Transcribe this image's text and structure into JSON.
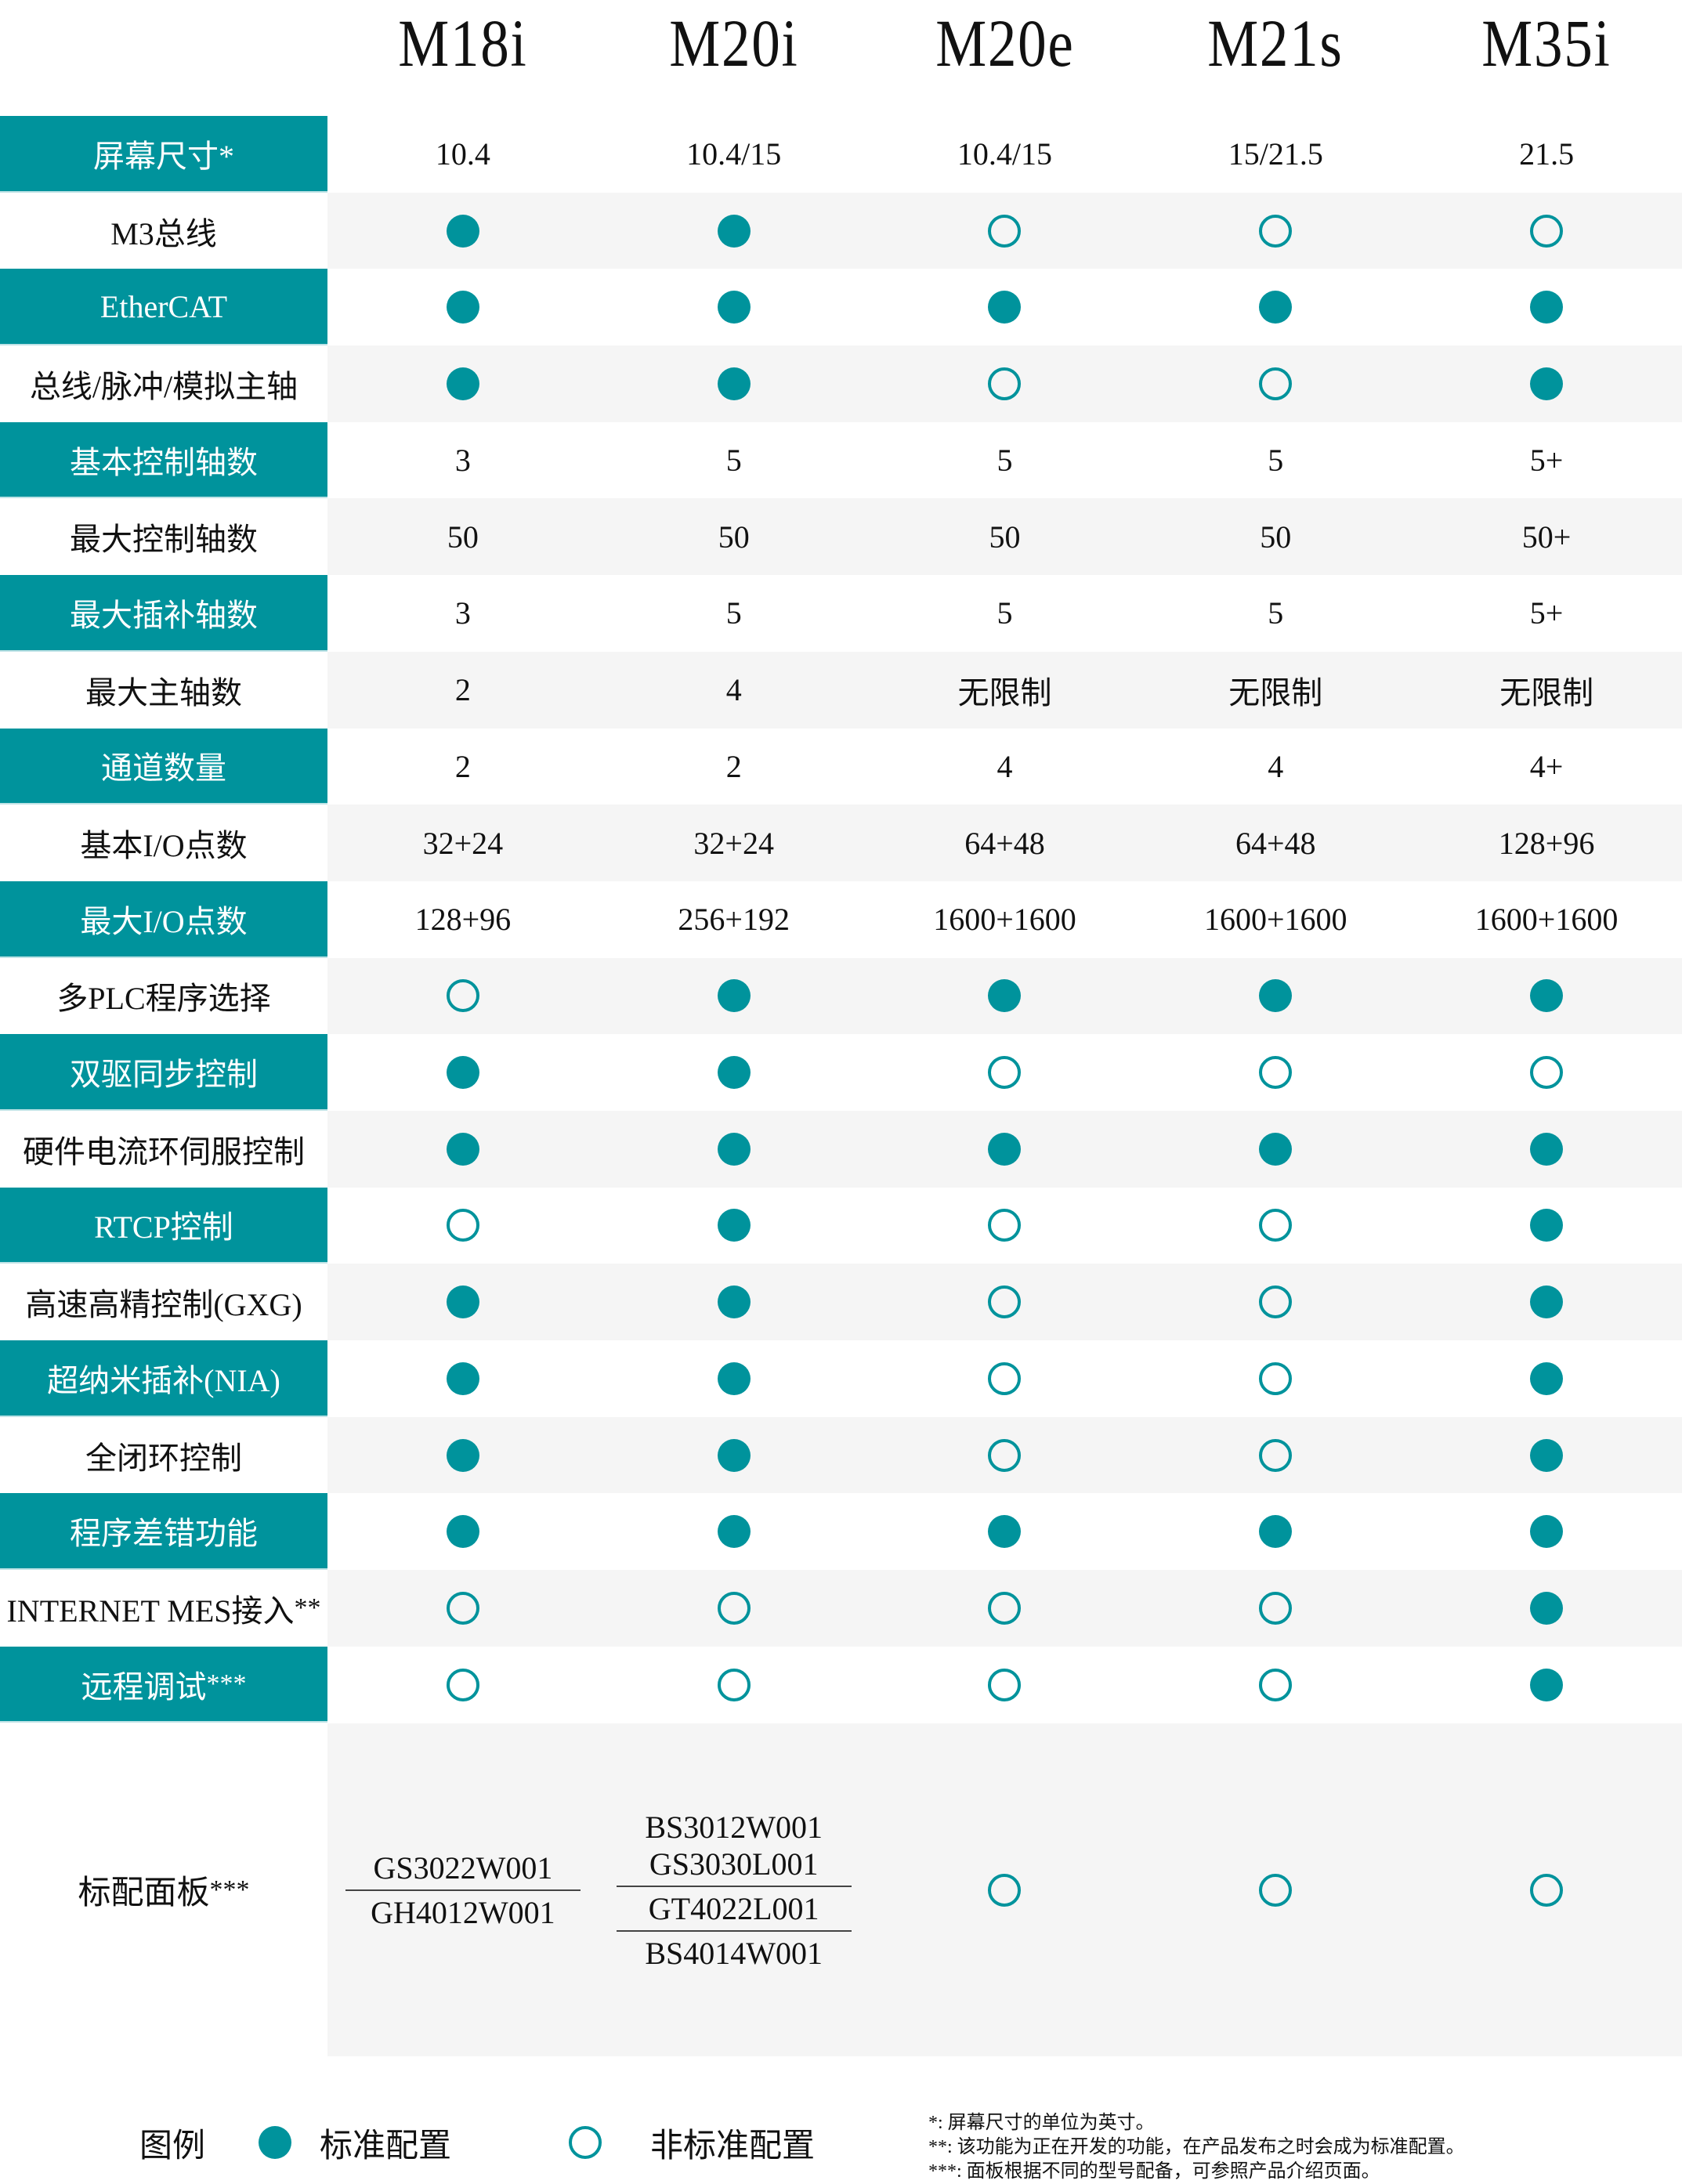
{
  "accent_color": "#00939c",
  "models": [
    "M18i",
    "M20i",
    "M20e",
    "M21s",
    "M35i"
  ],
  "rows": [
    {
      "label": "屏幕尺寸*",
      "teal": true,
      "values": [
        "10.4",
        "10.4/15",
        "10.4/15",
        "15/21.5",
        "21.5"
      ]
    },
    {
      "label": "M3总线",
      "teal": false,
      "values": [
        "filled",
        "filled",
        "open",
        "open",
        "open"
      ]
    },
    {
      "label": "EtherCAT",
      "teal": true,
      "values": [
        "filled",
        "filled",
        "filled",
        "filled",
        "filled"
      ]
    },
    {
      "label": "总线/脉冲/模拟主轴",
      "teal": false,
      "values": [
        "filled",
        "filled",
        "open",
        "open",
        "filled"
      ]
    },
    {
      "label": "基本控制轴数",
      "teal": true,
      "values": [
        "3",
        "5",
        "5",
        "5",
        "5+"
      ]
    },
    {
      "label": "最大控制轴数",
      "teal": false,
      "values": [
        "50",
        "50",
        "50",
        "50",
        "50+"
      ]
    },
    {
      "label": "最大插补轴数",
      "teal": true,
      "values": [
        "3",
        "5",
        "5",
        "5",
        "5+"
      ]
    },
    {
      "label": "最大主轴数",
      "teal": false,
      "values": [
        "2",
        "4",
        "无限制",
        "无限制",
        "无限制"
      ]
    },
    {
      "label": "通道数量",
      "teal": true,
      "values": [
        "2",
        "2",
        "4",
        "4",
        "4+"
      ]
    },
    {
      "label": "基本I/O点数",
      "teal": false,
      "values": [
        "32+24",
        "32+24",
        "64+48",
        "64+48",
        "128+96"
      ]
    },
    {
      "label": "最大I/O点数",
      "teal": true,
      "values": [
        "128+96",
        "256+192",
        "1600+1600",
        "1600+1600",
        "1600+1600"
      ]
    },
    {
      "label": "多PLC程序选择",
      "teal": false,
      "values": [
        "open",
        "filled",
        "filled",
        "filled",
        "filled"
      ]
    },
    {
      "label": "双驱同步控制",
      "teal": true,
      "values": [
        "filled",
        "filled",
        "open",
        "open",
        "open"
      ]
    },
    {
      "label": "硬件电流环伺服控制",
      "teal": false,
      "values": [
        "filled",
        "filled",
        "filled",
        "filled",
        "filled"
      ]
    },
    {
      "label": "RTCP控制",
      "teal": true,
      "values": [
        "open",
        "filled",
        "open",
        "open",
        "filled"
      ]
    },
    {
      "label": "高速高精控制(GXG)",
      "teal": false,
      "values": [
        "filled",
        "filled",
        "open",
        "open",
        "filled"
      ]
    },
    {
      "label": "超纳米插补(NIA)",
      "teal": true,
      "values": [
        "filled",
        "filled",
        "open",
        "open",
        "filled"
      ]
    },
    {
      "label": "全闭环控制",
      "teal": false,
      "values": [
        "filled",
        "filled",
        "open",
        "open",
        "filled"
      ]
    },
    {
      "label": "程序差错功能",
      "teal": true,
      "values": [
        "filled",
        "filled",
        "filled",
        "filled",
        "filled"
      ]
    },
    {
      "label": "INTERNET MES接入",
      "mark": "**",
      "teal": false,
      "values": [
        "open",
        "open",
        "open",
        "open",
        "filled"
      ]
    },
    {
      "label": "远程调试",
      "mark": "***",
      "teal": true,
      "values": [
        "open",
        "open",
        "open",
        "open",
        "filled"
      ]
    }
  ],
  "panel": {
    "label": "标配面板",
    "mark": "***",
    "m18i": [
      [
        "GS3022W001"
      ],
      [
        "GH4012W001"
      ]
    ],
    "m20i": [
      [
        "BS3012W001",
        "GS3030L001"
      ],
      [
        "GT4022L001"
      ],
      [
        "BS4014W001"
      ]
    ],
    "others": [
      "open",
      "open",
      "open"
    ]
  },
  "legend": {
    "title": "图例",
    "standard": "标准配置",
    "non_standard": "非标准配置"
  },
  "notes": [
    "*: 屏幕尺寸的单位为英寸。",
    "**: 该功能为正在开发的功能，在产品发布之时会成为标准配置。",
    "***: 面板根据不同的型号配备，可参照产品介绍页面。"
  ]
}
